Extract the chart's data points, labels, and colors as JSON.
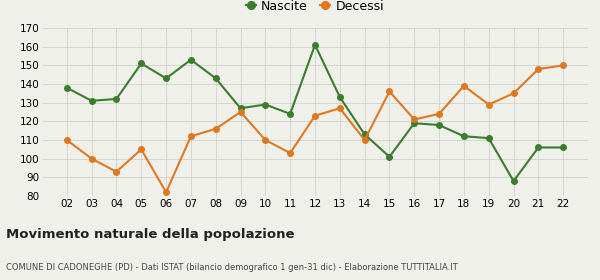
{
  "years": [
    "02",
    "03",
    "04",
    "05",
    "06",
    "07",
    "08",
    "09",
    "10",
    "11",
    "12",
    "13",
    "14",
    "15",
    "16",
    "17",
    "18",
    "19",
    "20",
    "21",
    "22"
  ],
  "nascite": [
    138,
    131,
    132,
    151,
    143,
    153,
    143,
    127,
    129,
    124,
    161,
    133,
    113,
    101,
    119,
    118,
    112,
    111,
    88,
    106,
    106
  ],
  "decessi": [
    110,
    100,
    93,
    105,
    82,
    112,
    116,
    125,
    110,
    103,
    123,
    127,
    110,
    136,
    121,
    124,
    139,
    129,
    135,
    148,
    150
  ],
  "nascite_color": "#3a7d2c",
  "decessi_color": "#e07820",
  "bg_color": "#f0f0eb",
  "grid_color": "#d0d0cc",
  "ylim": [
    80,
    170
  ],
  "yticks": [
    80,
    90,
    100,
    110,
    120,
    130,
    140,
    150,
    160,
    170
  ],
  "title": "Movimento naturale della popolazione",
  "subtitle": "COMUNE DI CADONEGHE (PD) - Dati ISTAT (bilancio demografico 1 gen-31 dic) - Elaborazione TUTTITALIA.IT",
  "legend_nascite": "Nascite",
  "legend_decessi": "Decessi",
  "marker_size": 4,
  "line_width": 1.5
}
